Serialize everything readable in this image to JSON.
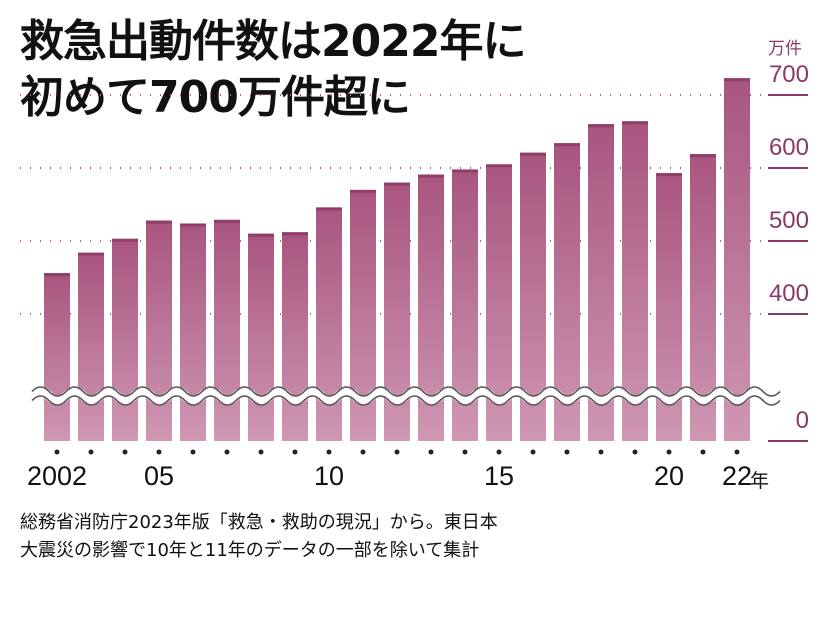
{
  "title_lines": [
    "救急出動件数は2022年に",
    "初めて700万件超に"
  ],
  "unit_label": "万件",
  "x_unit": "年",
  "source_lines": [
    "総務省消防庁2023年版「救急・救助の現況」から。東日本",
    "大震災の影響で10年と11年のデータの一部を除いて集計"
  ],
  "chart_data": {
    "type": "bar",
    "categories": [
      "2002",
      "2003",
      "2004",
      "2005",
      "2006",
      "2007",
      "2008",
      "2009",
      "2010",
      "2011",
      "2012",
      "2013",
      "2014",
      "2015",
      "2016",
      "2017",
      "2018",
      "2019",
      "2020",
      "2021",
      "2022"
    ],
    "values": [
      456,
      484,
      503,
      528,
      524,
      529,
      510,
      512,
      546,
      570,
      580,
      591,
      598,
      605,
      621,
      634,
      660,
      664,
      593,
      619,
      723
    ],
    "x_tick_labels": [
      "2002",
      "05",
      "10",
      "15",
      "20",
      "22"
    ],
    "x_tick_categories": [
      "2002",
      "2005",
      "2010",
      "2015",
      "2020",
      "2022"
    ],
    "y_tick_labels": [
      "0",
      "400",
      "500",
      "600",
      "700"
    ],
    "y_ticks": [
      400,
      500,
      600,
      700
    ],
    "axis_break": true,
    "ylim": [
      400,
      730
    ],
    "colors": {
      "bar": "#b0618b",
      "bar_light": "#c98dab",
      "accent": "#8a3a66",
      "dots": "#c4578a"
    }
  }
}
